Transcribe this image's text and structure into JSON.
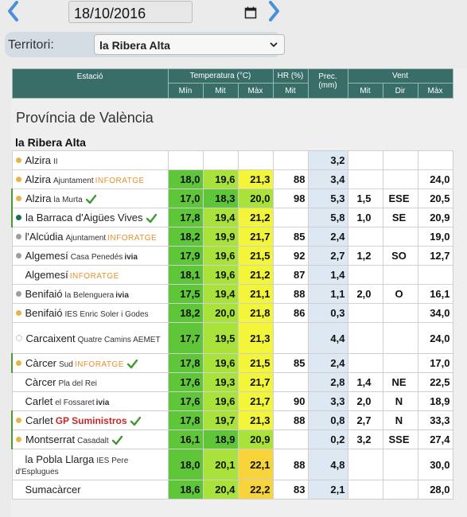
{
  "date_nav": {
    "date_value": "18/10/2016",
    "prev_icon": "chevron-left-icon",
    "next_icon": "chevron-right-icon",
    "calendar_icon": "calendar-icon"
  },
  "territory": {
    "label": "Territori:",
    "selected": "la Ribera Alta"
  },
  "table": {
    "headers": {
      "station": "Estació",
      "temperature": "Temperatura (°C)",
      "humidity": "HR (%)",
      "precipitation": "Prec. (mm)",
      "wind": "Vent",
      "min": "Mín",
      "mit": "Mit",
      "max": "Màx",
      "hr_mit": "Mit",
      "wind_mit": "Mit",
      "wind_dir": "Dir",
      "wind_max": "Màx"
    },
    "province": "Província de València",
    "comarca": "la Ribera Alta",
    "colors": {
      "header_bg": "#386d68",
      "temp_green": "#5fc63a",
      "temp_lightgreen": "#a8e23a",
      "temp_yellow": "#f2f53a",
      "temp_orange": "#f7d53a",
      "precip_bg": "#dde8f3"
    },
    "rows": [
      {
        "name": "Alzira",
        "sub": "II",
        "net": "",
        "dot": "#e8b44a",
        "verified": false,
        "tmin": "",
        "tmit": "",
        "tmax": "",
        "hr": "",
        "prec": "3,2",
        "wmit": "",
        "wdir": "",
        "wmax": ""
      },
      {
        "name": "Alzira",
        "sub": "Ajuntament",
        "net": "INFORATGE",
        "dot": "#e8b44a",
        "verified": false,
        "tmin": "18,0",
        "tmit": "19,6",
        "tmax": "21,3",
        "hr": "88",
        "prec": "3,4",
        "wmit": "",
        "wdir": "",
        "wmax": "24,0"
      },
      {
        "name": "Alzira",
        "sub": "la Murta",
        "net": "",
        "dot": "#e8b44a",
        "verified": true,
        "tmin": "17,0",
        "tmit": "18,3",
        "tmax": "20,0",
        "hr": "98",
        "prec": "5,3",
        "wmit": "1,5",
        "wdir": "ESE",
        "wmax": "20,5"
      },
      {
        "name": "la Barraca d'Aigües Vives",
        "sub": "",
        "net": "",
        "dot": "#1d6b5a",
        "verified": true,
        "tmin": "17,8",
        "tmit": "19,4",
        "tmax": "21,2",
        "hr": "",
        "prec": "5,8",
        "wmit": "1,0",
        "wdir": "SE",
        "wmax": "20,9"
      },
      {
        "name": "l'Alcúdia",
        "sub": "Ajuntament",
        "net": "INFORATGE",
        "dot": "#9e9e9e",
        "verified": false,
        "tmin": "18,2",
        "tmit": "19,9",
        "tmax": "21,7",
        "hr": "85",
        "prec": "2,4",
        "wmit": "",
        "wdir": "",
        "wmax": "19,0"
      },
      {
        "name": "Algemesí",
        "sub": "Casa Penedés",
        "net": "ivia",
        "dot": "#9e9e9e",
        "verified": false,
        "tmin": "17,9",
        "tmit": "19,6",
        "tmax": "21,5",
        "hr": "92",
        "prec": "2,7",
        "wmit": "1,2",
        "wdir": "SO",
        "wmax": "12,7"
      },
      {
        "name": "Algemesí",
        "sub": "",
        "net": "INFORATGE",
        "dot": "",
        "verified": false,
        "tmin": "18,1",
        "tmit": "19,6",
        "tmax": "21,2",
        "hr": "87",
        "prec": "1,4",
        "wmit": "",
        "wdir": "",
        "wmax": ""
      },
      {
        "name": "Benifaió",
        "sub": "la Belenguera",
        "net": "ivia",
        "dot": "#9e9e9e",
        "verified": false,
        "tmin": "17,5",
        "tmit": "19,4",
        "tmax": "21,1",
        "hr": "88",
        "prec": "1,1",
        "wmit": "2,0",
        "wdir": "O",
        "wmax": "16,1"
      },
      {
        "name": "Benifaió",
        "sub": "IES Enric Soler i Godes",
        "net": "",
        "dot": "#e8b44a",
        "verified": false,
        "tmin": "18,2",
        "tmit": "20,0",
        "tmax": "21,8",
        "hr": "86",
        "prec": "0,3",
        "wmit": "",
        "wdir": "",
        "wmax": "34,0"
      },
      {
        "name": "Carcaixent",
        "sub": "Quatre Camins AEMET",
        "net": "",
        "dot": "#ffffff",
        "verified": false,
        "tmin": "17,7",
        "tmit": "19,5",
        "tmax": "21,3",
        "hr": "",
        "prec": "4,4",
        "wmit": "",
        "wdir": "",
        "wmax": "24,0"
      },
      {
        "name": "Càrcer",
        "sub": "Sud",
        "net": "INFORATGE",
        "dot": "#e8b44a",
        "verified": true,
        "tmin": "17,8",
        "tmit": "19,6",
        "tmax": "21,5",
        "hr": "85",
        "prec": "2,4",
        "wmit": "",
        "wdir": "",
        "wmax": "17,0"
      },
      {
        "name": "Càrcer",
        "sub": "Pla del Rei",
        "net": "",
        "dot": "",
        "verified": false,
        "tmin": "17,6",
        "tmit": "19,3",
        "tmax": "21,7",
        "hr": "",
        "prec": "2,8",
        "wmit": "1,4",
        "wdir": "NE",
        "wmax": "22,5"
      },
      {
        "name": "Carlet",
        "sub": "el Fossaret",
        "net": "ivia",
        "dot": "",
        "verified": false,
        "tmin": "17,6",
        "tmit": "19,6",
        "tmax": "21,7",
        "hr": "90",
        "prec": "3,3",
        "wmit": "2,0",
        "wdir": "N",
        "wmax": "18,9"
      },
      {
        "name": "Carlet",
        "sub": "",
        "net": "GP Suministros",
        "dot": "#e8b44a",
        "verified": true,
        "tmin": "17,8",
        "tmit": "19,7",
        "tmax": "21,3",
        "hr": "88",
        "prec": "0,8",
        "wmit": "2,7",
        "wdir": "N",
        "wmax": "33,3"
      },
      {
        "name": "Montserrat",
        "sub": "Casadalt",
        "net": "",
        "dot": "#e8b44a",
        "verified": true,
        "tmin": "16,1",
        "tmit": "18,9",
        "tmax": "20,9",
        "hr": "",
        "prec": "0,2",
        "wmit": "3,2",
        "wdir": "SSE",
        "wmax": "27,4"
      },
      {
        "name": "la Pobla Llarga",
        "sub": "IES Pere d'Esplugues",
        "net": "",
        "dot": "",
        "verified": false,
        "tmin": "18,0",
        "tmit": "20,1",
        "tmax": "22,1",
        "hr": "88",
        "prec": "4,8",
        "wmit": "",
        "wdir": "",
        "wmax": "30,0"
      },
      {
        "name": "Sumacàrcer",
        "sub": "",
        "net": "",
        "dot": "",
        "verified": false,
        "tmin": "18,6",
        "tmit": "20,4",
        "tmax": "22,2",
        "hr": "83",
        "prec": "2,1",
        "wmit": "",
        "wdir": "",
        "wmax": "28,0"
      }
    ]
  }
}
